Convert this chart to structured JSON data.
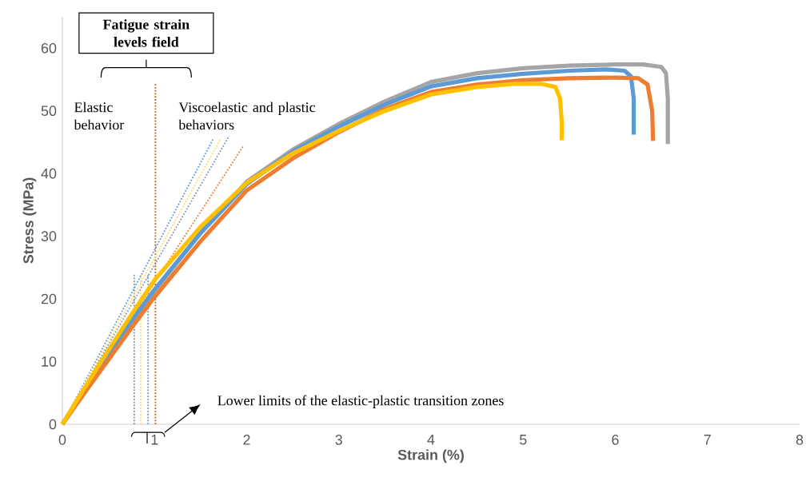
{
  "chart_data": {
    "type": "line",
    "xlabel": "Strain (%)",
    "ylabel": "Stress (MPa)",
    "xlim": [
      0,
      8
    ],
    "ylim": [
      0,
      65
    ],
    "xticks": [
      0,
      1,
      2,
      3,
      4,
      5,
      6,
      7,
      8
    ],
    "yticks": [
      0,
      10,
      20,
      30,
      40,
      50,
      60
    ],
    "annotations": [
      "Fatigue strain levels field",
      "Elastic behavior",
      "Viscoelastic and plastic behaviors",
      "Lower limits of the elastic-plastic transition zones"
    ],
    "series": [
      {
        "color": "#a5a5a5",
        "x": [
          0,
          0.25,
          0.5,
          0.75,
          1,
          1.5,
          2,
          2.5,
          3,
          3.5,
          4,
          4.5,
          5,
          5.5,
          6,
          6.3,
          6.5,
          6.55,
          6.57,
          6.57
        ],
        "values": [
          0,
          5.6,
          11,
          16.3,
          21.3,
          30.5,
          38.7,
          43.8,
          47.9,
          51.5,
          54.6,
          56,
          56.8,
          57.2,
          57.4,
          57.4,
          57,
          56,
          52,
          44.7
        ]
      },
      {
        "color": "#5b9bd5",
        "x": [
          0,
          0.25,
          0.5,
          0.75,
          1,
          1.5,
          2,
          2.5,
          3,
          3.5,
          4,
          4.5,
          5,
          5.5,
          5.9,
          6.1,
          6.17,
          6.2,
          6.2
        ],
        "values": [
          0,
          5.7,
          11.2,
          16.5,
          21.5,
          30.5,
          38.3,
          43.5,
          47.5,
          51,
          53.9,
          55.2,
          55.9,
          56.4,
          56.6,
          56.4,
          55.5,
          52,
          46.2
        ]
      },
      {
        "color": "#ed7d31",
        "x": [
          0,
          0.25,
          0.5,
          0.75,
          1,
          1.5,
          2,
          2.5,
          3,
          3.5,
          4,
          4.5,
          5,
          5.5,
          6,
          6.25,
          6.35,
          6.4,
          6.41
        ],
        "values": [
          0,
          5.2,
          10.3,
          15.4,
          20.3,
          29.2,
          37.3,
          42.4,
          46.6,
          50.3,
          53,
          54.2,
          54.9,
          55.2,
          55.3,
          55.2,
          54.2,
          50,
          45.2
        ]
      },
      {
        "color": "#ffc000",
        "x": [
          0,
          0.25,
          0.5,
          0.75,
          1,
          1.5,
          2,
          2.5,
          3,
          3.5,
          4,
          4.5,
          4.9,
          5.2,
          5.35,
          5.4,
          5.42,
          5.42
        ],
        "values": [
          0,
          6,
          11.8,
          17.5,
          23,
          31.5,
          38.5,
          43.2,
          46.8,
          50,
          52.6,
          53.8,
          54.3,
          54.3,
          53.8,
          52,
          48,
          45.3
        ]
      },
      {
        "color": "#7f8fa6",
        "line_style": "dotted",
        "x": [
          0.78,
          0.78
        ],
        "values": [
          0,
          24
        ]
      },
      {
        "color": "#ffd966",
        "line_style": "dotted",
        "x": [
          0.85,
          0.85
        ],
        "values": [
          0,
          24
        ]
      },
      {
        "color": "#5b9bd5",
        "line_style": "dotted",
        "x": [
          0.93,
          0.93
        ],
        "values": [
          0,
          24
        ]
      },
      {
        "color": "#c55a11",
        "line_style": "dotted",
        "x": [
          1.01,
          1.01
        ],
        "values": [
          0,
          54.3
        ]
      },
      {
        "color": "#5b9bd5",
        "line_style": "dotted",
        "x": [
          0,
          1.64
        ],
        "values": [
          0,
          45.6
        ]
      },
      {
        "color": "#ffd966",
        "line_style": "dotted",
        "x": [
          0,
          1.72
        ],
        "values": [
          0,
          45.6
        ]
      },
      {
        "color": "#8497b0",
        "line_style": "dotted",
        "x": [
          0,
          1.81
        ],
        "values": [
          0,
          46
        ]
      },
      {
        "color": "#ed7d31",
        "line_style": "dotted",
        "x": [
          0,
          1.96
        ],
        "values": [
          0,
          44.3
        ]
      }
    ]
  }
}
